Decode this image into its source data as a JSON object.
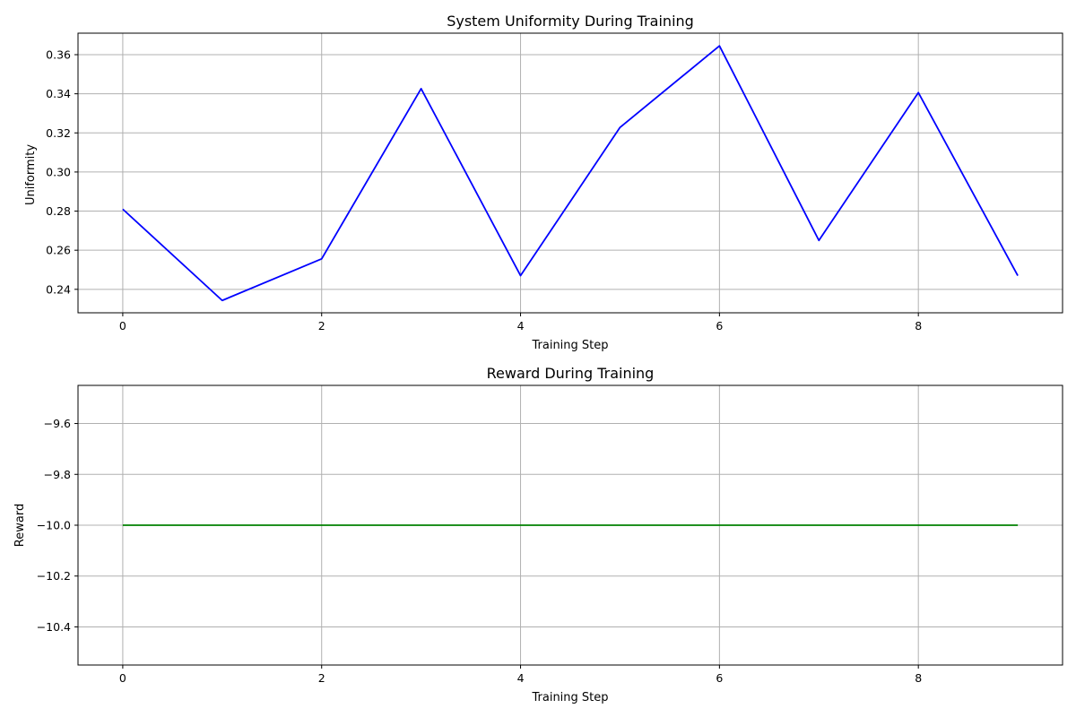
{
  "chart_data": [
    {
      "type": "line",
      "title": "System Uniformity During Training",
      "xlabel": "Training Step",
      "ylabel": "Uniformity",
      "xlim": [
        -0.45,
        9.45
      ],
      "ylim": [
        0.228,
        0.371
      ],
      "xticks": [
        0,
        2,
        4,
        6,
        8
      ],
      "xtick_labels": [
        "0",
        "2",
        "4",
        "6",
        "8"
      ],
      "yticks": [
        0.24,
        0.26,
        0.28,
        0.3,
        0.32,
        0.34,
        0.36
      ],
      "ytick_labels": [
        "0.24",
        "0.26",
        "0.28",
        "0.30",
        "0.32",
        "0.34",
        "0.36"
      ],
      "grid": true,
      "series": [
        {
          "color": "#0000ff",
          "x": [
            0,
            1,
            2,
            3,
            4,
            5,
            6,
            7,
            8,
            9
          ],
          "values": [
            0.281,
            0.2343,
            0.2556,
            0.3426,
            0.247,
            0.3228,
            0.3645,
            0.265,
            0.3406,
            0.247
          ]
        }
      ]
    },
    {
      "type": "line",
      "title": "Reward During Training",
      "xlabel": "Training Step",
      "ylabel": "Reward",
      "xlim": [
        -0.45,
        9.45
      ],
      "ylim": [
        -10.55,
        -9.45
      ],
      "xticks": [
        0,
        2,
        4,
        6,
        8
      ],
      "xtick_labels": [
        "0",
        "2",
        "4",
        "6",
        "8"
      ],
      "yticks": [
        -10.4,
        -10.2,
        -10.0,
        -9.8,
        -9.6
      ],
      "ytick_labels": [
        "−10.4",
        "−10.2",
        "−10.0",
        "−9.8",
        "−9.6"
      ],
      "grid": true,
      "series": [
        {
          "color": "#008000",
          "x": [
            0,
            1,
            2,
            3,
            4,
            5,
            6,
            7,
            8,
            9
          ],
          "values": [
            -10.0,
            -10.0,
            -10.0,
            -10.0,
            -10.0,
            -10.0,
            -10.0,
            -10.0,
            -10.0,
            -10.0
          ]
        }
      ]
    }
  ]
}
